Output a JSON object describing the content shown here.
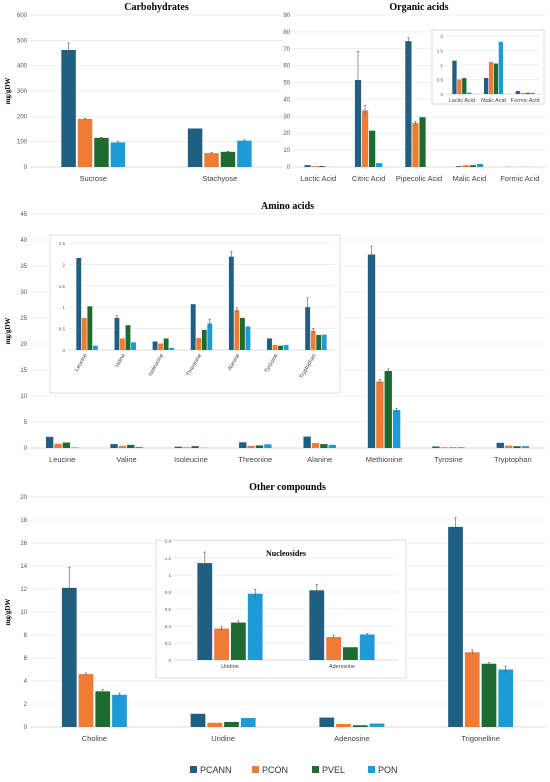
{
  "colors": {
    "PCANN": "#1f5f82",
    "PCON": "#f07b35",
    "PVEL": "#1e6b30",
    "PON": "#1e9bd6"
  },
  "legend": [
    "PCANN",
    "PCON",
    "PVEL",
    "PON"
  ],
  "ylabel": "mg/gDW",
  "chart_data": [
    {
      "id": "carbohydrates",
      "type": "bar",
      "title": "Carbohydrates",
      "ylabel": "mg/gDW",
      "categories": [
        "Sucrose",
        "Stachyose"
      ],
      "ylim": [
        0,
        600
      ],
      "ticks": [
        0,
        100,
        200,
        300,
        400,
        500,
        600
      ],
      "series": [
        {
          "name": "PCANN",
          "values": [
            462,
            152
          ],
          "errors": [
            28,
            0
          ]
        },
        {
          "name": "PCON",
          "values": [
            190,
            55
          ],
          "errors": [
            3,
            2
          ]
        },
        {
          "name": "PVEL",
          "values": [
            115,
            60
          ],
          "errors": [
            2,
            2
          ]
        },
        {
          "name": "PON",
          "values": [
            97,
            104
          ],
          "errors": [
            5,
            3
          ]
        }
      ]
    },
    {
      "id": "organic",
      "type": "bar",
      "title": "Organic acids",
      "categories": [
        "Lactic Acid",
        "Citric Acid",
        "Pipecolic Acid",
        "Malic Acid",
        "Formic Acid"
      ],
      "ylim": [
        0,
        90
      ],
      "ticks": [
        0,
        10,
        20,
        30,
        40,
        50,
        60,
        70,
        80,
        90
      ],
      "series": [
        {
          "name": "PCANN",
          "values": [
            1.1,
            51.5,
            74.5,
            0.5,
            0.1
          ],
          "errors": [
            0,
            17,
            2,
            0,
            0
          ]
        },
        {
          "name": "PCON",
          "values": [
            0.5,
            33.5,
            26,
            1.1,
            0.04
          ],
          "errors": [
            0,
            3,
            1,
            0,
            0
          ]
        },
        {
          "name": "PVEL",
          "values": [
            0.55,
            21.5,
            29.5,
            1.05,
            0.04
          ],
          "errors": [
            0,
            0,
            0,
            0,
            0
          ]
        },
        {
          "name": "PON",
          "values": [
            0.05,
            2.3,
            0,
            1.8,
            0.04
          ],
          "errors": [
            0,
            0,
            0,
            0,
            0
          ]
        }
      ]
    },
    {
      "id": "organic_inset",
      "type": "bar",
      "inset": true,
      "categories": [
        "Lactic Acid",
        "Malic Acid",
        "Formic Acid"
      ],
      "ylim": [
        0,
        2
      ],
      "ticks": [
        0,
        0.5,
        1,
        1.5,
        2
      ],
      "series": [
        {
          "name": "PCANN",
          "values": [
            1.15,
            0.55,
            0.1
          ],
          "errors": [
            0,
            0,
            0
          ]
        },
        {
          "name": "PCON",
          "values": [
            0.5,
            1.1,
            0.04
          ],
          "errors": [
            0,
            0,
            0
          ]
        },
        {
          "name": "PVEL",
          "values": [
            0.55,
            1.05,
            0.04
          ],
          "errors": [
            0,
            0,
            0
          ]
        },
        {
          "name": "PON",
          "values": [
            0.05,
            1.8,
            0.04
          ],
          "errors": [
            0,
            0,
            0
          ]
        }
      ]
    },
    {
      "id": "amino",
      "type": "bar",
      "title": "Amino acids",
      "ylabel": "mg/gDW",
      "categories": [
        "Leucine",
        "Valine",
        "Isoleucine",
        "Threonine",
        "Alanine",
        "Methionine",
        "Tyrosine",
        "Tryptophan"
      ],
      "ylim": [
        0,
        45
      ],
      "ticks": [
        0,
        5,
        10,
        15,
        20,
        25,
        30,
        35,
        40,
        45
      ],
      "series": [
        {
          "name": "PCANN",
          "values": [
            2.15,
            0.75,
            0.25,
            1.1,
            2.2,
            37.2,
            0.3,
            1.0
          ],
          "errors": [
            0,
            0,
            0,
            0,
            0,
            1.6,
            0,
            0
          ]
        },
        {
          "name": "PCON",
          "values": [
            0.8,
            0.4,
            0.15,
            0.4,
            0.95,
            12.8,
            0.15,
            0.45
          ],
          "errors": [
            0,
            0,
            0,
            0,
            0,
            0.4,
            0,
            0
          ]
        },
        {
          "name": "PVEL",
          "values": [
            1.05,
            0.6,
            0.35,
            0.5,
            0.75,
            14.8,
            0.1,
            0.35
          ],
          "errors": [
            0,
            0,
            0,
            0,
            0,
            0.4,
            0,
            0
          ]
        },
        {
          "name": "PON",
          "values": [
            0.1,
            0.2,
            0.05,
            0.7,
            0.6,
            7.3,
            0.15,
            0.35
          ],
          "errors": [
            0,
            0,
            0,
            0,
            0,
            0.3,
            0,
            0
          ]
        }
      ]
    },
    {
      "id": "amino_inset",
      "type": "bar",
      "inset": true,
      "categories": [
        "Leucine",
        "Valine",
        "Isoleucine",
        "Threonine",
        "Alanine",
        "Tyrosine",
        "Tryptophan"
      ],
      "ylim": [
        0,
        2.5
      ],
      "ticks": [
        0,
        0.5,
        1,
        1.5,
        2,
        2.5
      ],
      "series": [
        {
          "name": "PCANN",
          "values": [
            2.15,
            0.75,
            0.2,
            1.07,
            2.18,
            0.27,
            1.0
          ],
          "errors": [
            0,
            0.05,
            0,
            0,
            0.12,
            0,
            0.22
          ]
        },
        {
          "name": "PCON",
          "values": [
            0.75,
            0.27,
            0.15,
            0.28,
            0.93,
            0.12,
            0.45
          ],
          "errors": [
            0,
            0,
            0,
            0,
            0.05,
            0,
            0.05
          ]
        },
        {
          "name": "PVEL",
          "values": [
            1.02,
            0.58,
            0.27,
            0.47,
            0.75,
            0.1,
            0.35
          ],
          "errors": [
            0,
            0,
            0,
            0,
            0,
            0,
            0
          ]
        },
        {
          "name": "PON",
          "values": [
            0.1,
            0.18,
            0.05,
            0.62,
            0.55,
            0.12,
            0.36
          ],
          "errors": [
            0,
            0,
            0,
            0.1,
            0,
            0,
            0
          ]
        }
      ]
    },
    {
      "id": "other",
      "type": "bar",
      "title": "Other compounds",
      "ylabel": "mg/gDW",
      "categories": [
        "Choline",
        "Uridine",
        "Adenosine",
        "Trigonelline"
      ],
      "ylim": [
        0,
        20
      ],
      "ticks": [
        0,
        2,
        4,
        6,
        8,
        10,
        12,
        14,
        16,
        18,
        20
      ],
      "series": [
        {
          "name": "PCANN",
          "values": [
            12.1,
            1.15,
            0.82,
            17.4
          ],
          "errors": [
            1.8,
            0,
            0,
            0.8
          ]
        },
        {
          "name": "PCON",
          "values": [
            4.6,
            0.37,
            0.27,
            6.5
          ],
          "errors": [
            0.1,
            0,
            0,
            0.2
          ]
        },
        {
          "name": "PVEL",
          "values": [
            3.1,
            0.44,
            0.15,
            5.5
          ],
          "errors": [
            0.15,
            0,
            0,
            0.1
          ]
        },
        {
          "name": "PON",
          "values": [
            2.8,
            0.78,
            0.3,
            5.0
          ],
          "errors": [
            0.15,
            0,
            0,
            0.3
          ]
        }
      ]
    },
    {
      "id": "nucleosides_inset",
      "type": "bar",
      "inset": true,
      "title": "Nucleosides",
      "categories": [
        "Uridine",
        "Adenosine"
      ],
      "ylim": [
        0,
        1.4
      ],
      "ticks": [
        0,
        0.2,
        0.4,
        0.6,
        0.8,
        1,
        1.2,
        1.4
      ],
      "series": [
        {
          "name": "PCANN",
          "values": [
            1.14,
            0.82
          ],
          "errors": [
            0.13,
            0.07
          ]
        },
        {
          "name": "PCON",
          "values": [
            0.37,
            0.27
          ],
          "errors": [
            0.02,
            0.02
          ]
        },
        {
          "name": "PVEL",
          "values": [
            0.44,
            0.15
          ],
          "errors": [
            0.02,
            0
          ]
        },
        {
          "name": "PON",
          "values": [
            0.78,
            0.3
          ],
          "errors": [
            0.05,
            0.01
          ]
        }
      ]
    }
  ]
}
